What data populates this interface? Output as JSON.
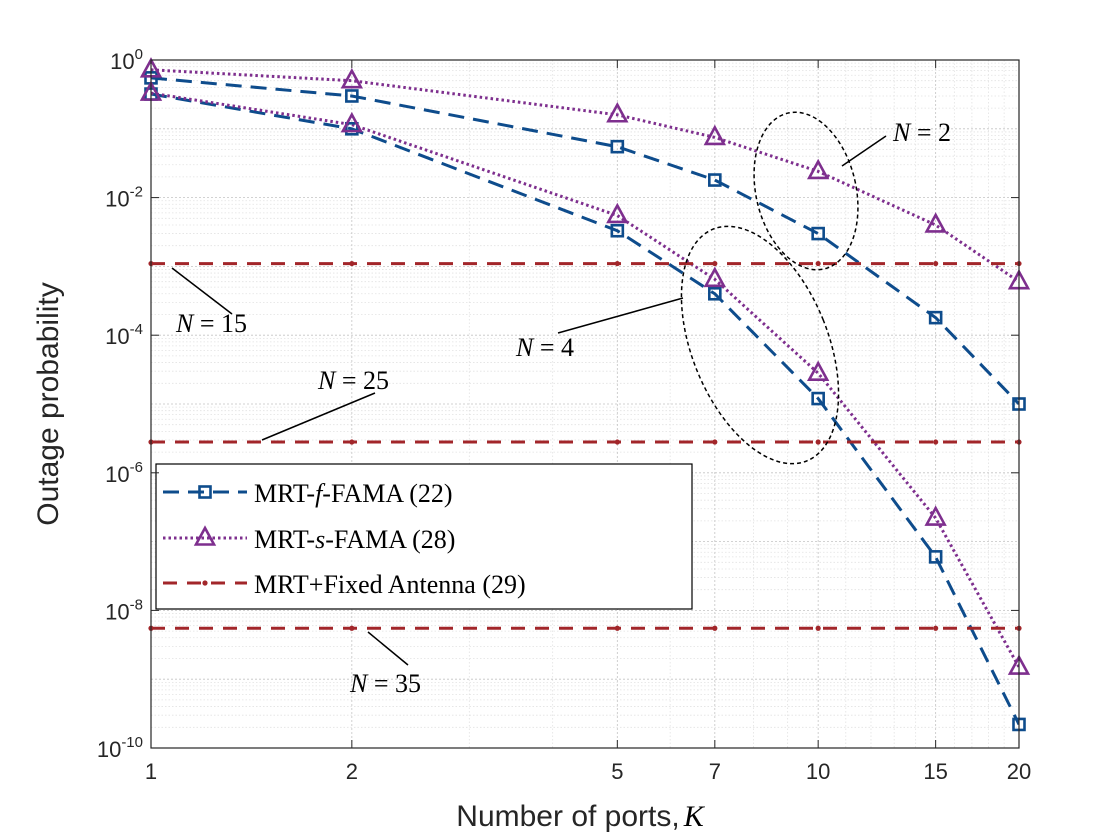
{
  "chart_data": {
    "type": "line",
    "xscale": "log",
    "yscale": "log",
    "xlabel": "Number of ports,",
    "xlabel_symbol": "K",
    "ylabel": "Outage probability",
    "xlim": [
      1,
      20
    ],
    "ylim": [
      1e-10,
      1
    ],
    "grid": true,
    "x_ticks": [
      1,
      2,
      5,
      7,
      10,
      15,
      20
    ],
    "x_tick_labels": [
      "1",
      "2",
      "5",
      "7",
      "10",
      "15",
      "20"
    ],
    "y_ticks": [
      {
        "value": 1,
        "base": "10",
        "exp": "0"
      },
      {
        "value": 0.01,
        "base": "10",
        "exp": "-2"
      },
      {
        "value": 0.0001,
        "base": "10",
        "exp": "-4"
      },
      {
        "value": 1e-06,
        "base": "10",
        "exp": "-6"
      },
      {
        "value": 1e-08,
        "base": "10",
        "exp": "-8"
      },
      {
        "value": 1e-10,
        "base": "10",
        "exp": "-10"
      }
    ],
    "series": [
      {
        "name": "MRT-f-FAMA (22) N=2",
        "kind": "f",
        "color": "#0E4C8C",
        "x": [
          1,
          2,
          5,
          7,
          10,
          15,
          20
        ],
        "y": [
          0.55,
          0.3,
          0.055,
          0.018,
          0.003,
          0.00018,
          1e-05
        ]
      },
      {
        "name": "MRT-s-FAMA (28) N=2",
        "kind": "s",
        "color": "#7E2F8E",
        "x": [
          1,
          2,
          5,
          7,
          10,
          15,
          20
        ],
        "y": [
          0.72,
          0.5,
          0.16,
          0.075,
          0.024,
          0.004,
          0.0006
        ]
      },
      {
        "name": "MRT-f-FAMA (22) N=4",
        "kind": "f",
        "color": "#0E4C8C",
        "x": [
          1,
          2,
          5,
          7,
          10,
          15,
          20
        ],
        "y": [
          0.32,
          0.1,
          0.0033,
          0.0004,
          1.2e-05,
          6e-08,
          2.2e-10
        ]
      },
      {
        "name": "MRT-s-FAMA (28) N=4",
        "kind": "s",
        "color": "#7E2F8E",
        "x": [
          1,
          2,
          5,
          7,
          10,
          15,
          20
        ],
        "y": [
          0.33,
          0.115,
          0.0055,
          0.00065,
          2.8e-05,
          2.2e-07,
          1.5e-09
        ]
      },
      {
        "name": "MRT+Fixed Antenna (29) N=15",
        "kind": "fixed",
        "color": "#A2262A",
        "x": [
          1,
          2,
          5,
          7,
          10,
          15,
          20
        ],
        "y": [
          0.0011,
          0.0011,
          0.0011,
          0.0011,
          0.0011,
          0.0011,
          0.0011
        ]
      },
      {
        "name": "MRT+Fixed Antenna (29) N=25",
        "kind": "fixed",
        "color": "#A2262A",
        "x": [
          1,
          2,
          5,
          7,
          10,
          15,
          20
        ],
        "y": [
          2.8e-06,
          2.8e-06,
          2.8e-06,
          2.8e-06,
          2.8e-06,
          2.8e-06,
          2.8e-06
        ]
      },
      {
        "name": "MRT+Fixed Antenna (29) N=35",
        "kind": "fixed",
        "color": "#A2262A",
        "x": [
          1,
          2,
          5,
          7,
          10,
          15,
          20
        ],
        "y": [
          5.5e-09,
          5.5e-09,
          5.5e-09,
          5.5e-09,
          5.5e-09,
          5.5e-09,
          5.5e-09
        ]
      }
    ],
    "legend": {
      "position": "lower-left",
      "entries": [
        {
          "kind": "f",
          "pre": "MRT-",
          "italic": "f",
          "post": "-FAMA (22)"
        },
        {
          "kind": "s",
          "pre": "MRT-",
          "italic": "s",
          "post": "-FAMA (28)"
        },
        {
          "kind": "fixed",
          "pre": "MRT+Fixed Antenna (29)",
          "italic": "",
          "post": ""
        }
      ]
    },
    "annotations": [
      {
        "name": "N=2",
        "italic": "N",
        "rest": " = 2"
      },
      {
        "name": "N=4",
        "italic": "N",
        "rest": " = 4"
      },
      {
        "name": "N=15",
        "italic": "N",
        "rest": " = 15"
      },
      {
        "name": "N=25",
        "italic": "N",
        "rest": " = 25"
      },
      {
        "name": "N=35",
        "italic": "N",
        "rest": " = 35"
      }
    ]
  }
}
